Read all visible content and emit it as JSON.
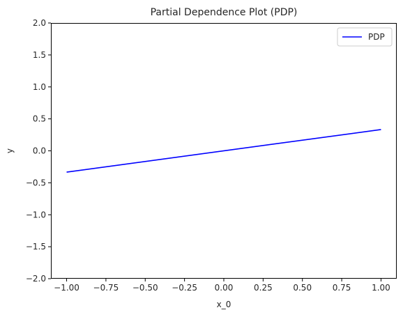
{
  "chart_data": {
    "type": "line",
    "title": "Partial Dependence Plot (PDP)",
    "xlabel": "x_0",
    "ylabel": "y",
    "xlim": [
      -1.1,
      1.1
    ],
    "ylim": [
      -2.0,
      2.0
    ],
    "x_ticks": [
      -1.0,
      -0.75,
      -0.5,
      -0.25,
      0.0,
      0.25,
      0.5,
      0.75,
      1.0
    ],
    "x_tick_labels": [
      "−1.00",
      "−0.75",
      "−0.50",
      "−0.25",
      "0.00",
      "0.25",
      "0.50",
      "0.75",
      "1.00"
    ],
    "y_ticks": [
      -2.0,
      -1.5,
      -1.0,
      -0.5,
      0.0,
      0.5,
      1.0,
      1.5,
      2.0
    ],
    "y_tick_labels": [
      "−2.0",
      "−1.5",
      "−1.0",
      "−0.5",
      "0.0",
      "0.5",
      "1.0",
      "1.5",
      "2.0"
    ],
    "grid": false,
    "legend_position": "top-right",
    "series": [
      {
        "name": "PDP",
        "color": "#0000ff",
        "x": [
          -1.0,
          1.0
        ],
        "y": [
          -0.333,
          0.333
        ]
      }
    ]
  }
}
